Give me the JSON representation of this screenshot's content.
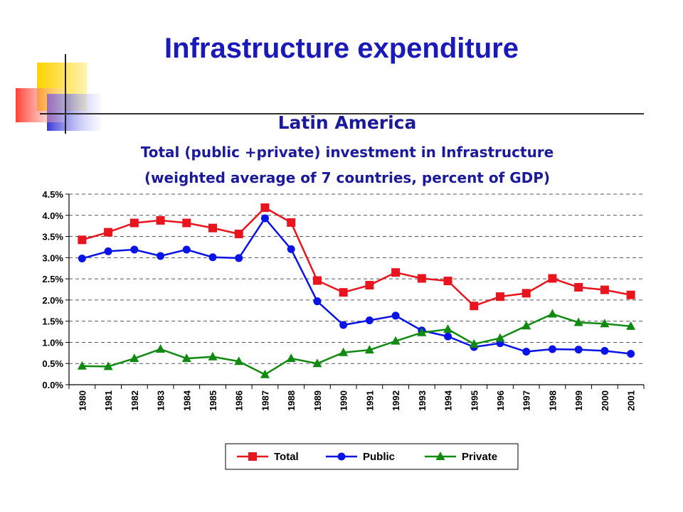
{
  "slide": {
    "title": "Infrastructure expenditure",
    "subtitle_region": "Latin America",
    "subtitle_line1": "Total (public +private) investment in Infrastructure",
    "subtitle_line2": "(weighted average of 7 countries, percent of GDP)"
  },
  "chart_data": {
    "type": "line",
    "title": "",
    "xlabel": "",
    "ylabel": "",
    "x": [
      "1980",
      "1981",
      "1982",
      "1983",
      "1984",
      "1985",
      "1986",
      "1987",
      "1988",
      "1989",
      "1990",
      "1991",
      "1992",
      "1993",
      "1994",
      "1995",
      "1996",
      "1997",
      "1998",
      "1999",
      "2000",
      "2001"
    ],
    "ylim": [
      0,
      4.5
    ],
    "y_ticks": [
      "0.0%",
      "0.5%",
      "1.0%",
      "1.5%",
      "2.0%",
      "2.5%",
      "3.0%",
      "3.5%",
      "4.0%",
      "4.5%"
    ],
    "grid": "horizontal dashed",
    "legend_position": "bottom",
    "series": [
      {
        "name": "Total",
        "color": "#e8141e",
        "marker": "square",
        "values": [
          3.42,
          3.6,
          3.82,
          3.88,
          3.82,
          3.7,
          3.56,
          4.18,
          3.83,
          2.46,
          2.18,
          2.35,
          2.65,
          2.51,
          2.45,
          1.86,
          2.08,
          2.16,
          2.51,
          2.3,
          2.24,
          2.12
        ]
      },
      {
        "name": "Public",
        "color": "#0a14e6",
        "marker": "circle",
        "values": [
          2.98,
          3.15,
          3.19,
          3.04,
          3.19,
          3.01,
          2.99,
          3.93,
          3.2,
          1.97,
          1.41,
          1.52,
          1.63,
          1.28,
          1.14,
          0.89,
          0.98,
          0.78,
          0.84,
          0.83,
          0.8,
          0.73
        ]
      },
      {
        "name": "Private",
        "color": "#118a11",
        "marker": "triangle",
        "values": [
          0.44,
          0.43,
          0.62,
          0.84,
          0.62,
          0.66,
          0.55,
          0.24,
          0.62,
          0.5,
          0.76,
          0.82,
          1.03,
          1.23,
          1.31,
          0.96,
          1.1,
          1.39,
          1.67,
          1.47,
          1.44,
          1.38
        ]
      }
    ]
  }
}
